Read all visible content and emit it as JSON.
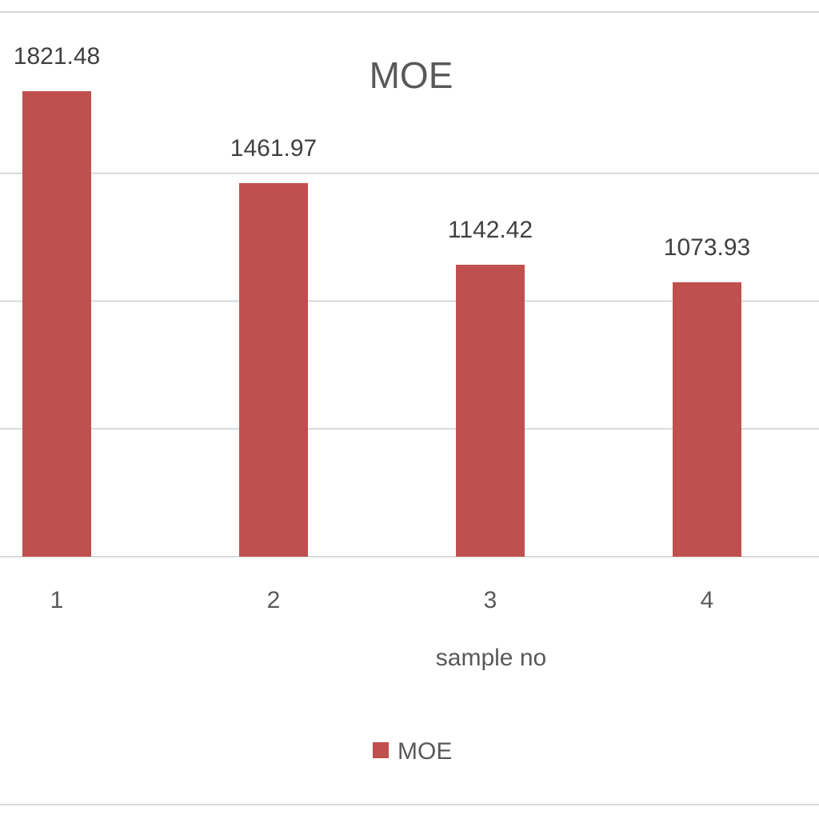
{
  "chart_data": {
    "type": "bar",
    "title": "MOE",
    "xlabel": "sample no",
    "ylabel": "",
    "categories": [
      "1",
      "2",
      "3",
      "4"
    ],
    "series": [
      {
        "name": "MOE",
        "color": "#c0504d",
        "values": [
          1821.48,
          1461.97,
          1142.42,
          1073.93
        ],
        "data_labels": [
          "1821.48",
          "1461.97",
          "1142.42",
          "1073.93"
        ]
      }
    ],
    "ylim": [
      0,
      2000
    ],
    "y_gridlines": [
      0,
      500,
      1000,
      1500,
      2000
    ],
    "grid": true,
    "legend_position": "bottom",
    "gridline_color": "#d9d9d9"
  }
}
